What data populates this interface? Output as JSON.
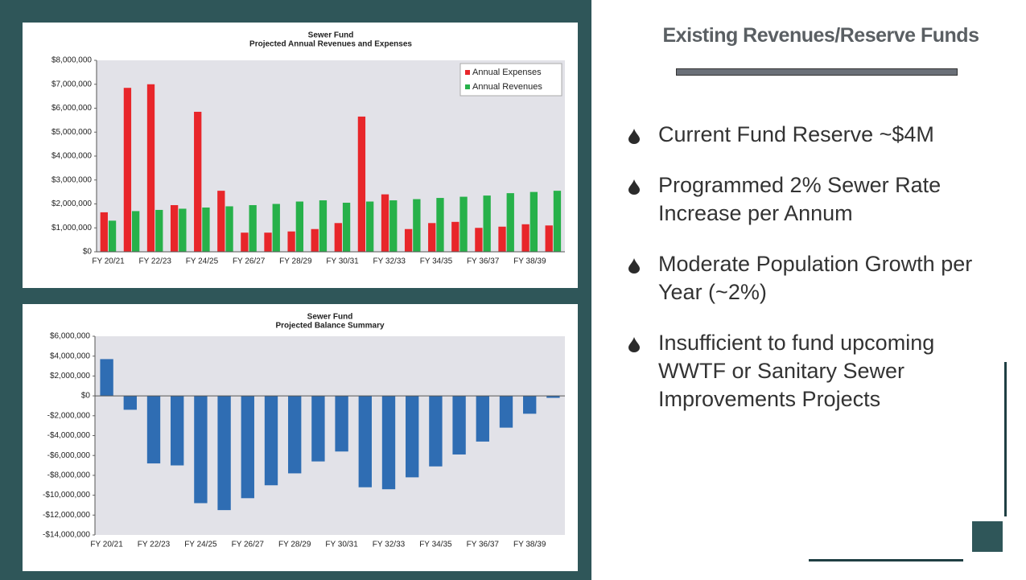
{
  "chart_data": [
    {
      "type": "bar",
      "title": "Sewer Fund",
      "subtitle": "Projected Annual Revenues and Expenses",
      "categories": [
        "FY 20/21",
        null,
        "FY 22/23",
        null,
        "FY 24/25",
        null,
        "FY 26/27",
        null,
        "FY 28/29",
        null,
        "FY 30/31",
        null,
        "FY 32/33",
        null,
        "FY 34/35",
        null,
        "FY 36/37",
        null,
        "FY 38/39",
        null
      ],
      "series": [
        {
          "name": "Annual Expenses",
          "color": "#e8262a",
          "values": [
            1650000,
            6850000,
            7000000,
            1950000,
            5850000,
            2550000,
            800000,
            800000,
            850000,
            950000,
            1200000,
            5650000,
            2400000,
            950000,
            1200000,
            1250000,
            1000000,
            1050000,
            1150000,
            1100000
          ]
        },
        {
          "name": "Annual Revenues",
          "color": "#27b14a",
          "values": [
            1300000,
            1700000,
            1750000,
            1800000,
            1850000,
            1900000,
            1950000,
            2000000,
            2100000,
            2150000,
            2050000,
            2100000,
            2150000,
            2200000,
            2250000,
            2300000,
            2350000,
            2450000,
            2500000,
            2550000
          ]
        }
      ],
      "ylim": [
        0,
        8000000
      ],
      "yticks": [
        {
          "value": 0,
          "label": "$0"
        },
        {
          "value": 1000000,
          "label": "$1,000,000"
        },
        {
          "value": 2000000,
          "label": "$2,000,000"
        },
        {
          "value": 3000000,
          "label": "$3,000,000"
        },
        {
          "value": 4000000,
          "label": "$4,000,000"
        },
        {
          "value": 5000000,
          "label": "$5,000,000"
        },
        {
          "value": 6000000,
          "label": "$6,000,000"
        },
        {
          "value": 7000000,
          "label": "$7,000,000"
        },
        {
          "value": 8000000,
          "label": "$8,000,000"
        }
      ],
      "legend": "upper right",
      "grid": false
    },
    {
      "type": "bar",
      "title": "Sewer Fund",
      "subtitle": "Projected Balance Summary",
      "categories": [
        "FY 20/21",
        null,
        "FY 22/23",
        null,
        "FY 24/25",
        null,
        "FY 26/27",
        null,
        "FY 28/29",
        null,
        "FY 30/31",
        null,
        "FY 32/33",
        null,
        "FY 34/35",
        null,
        "FY 36/37",
        null,
        "FY 38/39",
        null
      ],
      "values": [
        3700000,
        -1400000,
        -6800000,
        -7000000,
        -10800000,
        -11500000,
        -10300000,
        -9000000,
        -7800000,
        -6600000,
        -5600000,
        -9200000,
        -9400000,
        -8200000,
        -7100000,
        -5900000,
        -4600000,
        -3200000,
        -1800000,
        -200000
      ],
      "color": "#2f6db3",
      "ylim": [
        -14000000,
        6000000
      ],
      "yticks": [
        {
          "value": -14000000,
          "label": "-$14,000,000"
        },
        {
          "value": -12000000,
          "label": "-$12,000,000"
        },
        {
          "value": -10000000,
          "label": "-$10,000,000"
        },
        {
          "value": -8000000,
          "label": "-$8,000,000"
        },
        {
          "value": -6000000,
          "label": "-$6,000,000"
        },
        {
          "value": -4000000,
          "label": "-$4,000,000"
        },
        {
          "value": -2000000,
          "label": "-$2,000,000"
        },
        {
          "value": 0,
          "label": "$0"
        },
        {
          "value": 2000000,
          "label": "$2,000,000"
        },
        {
          "value": 4000000,
          "label": "$4,000,000"
        },
        {
          "value": 6000000,
          "label": "$6,000,000"
        }
      ],
      "grid": false
    }
  ],
  "slide": {
    "heading": "Existing Revenues/Reserve Funds",
    "bullets": [
      "Current Fund Reserve ~$4M",
      "Programmed 2% Sewer Rate Increase per Annum",
      "Moderate Population Growth per Year (~2%)",
      "Insufficient to fund upcoming WWTF or Sanitary Sewer Improvements Projects"
    ]
  }
}
